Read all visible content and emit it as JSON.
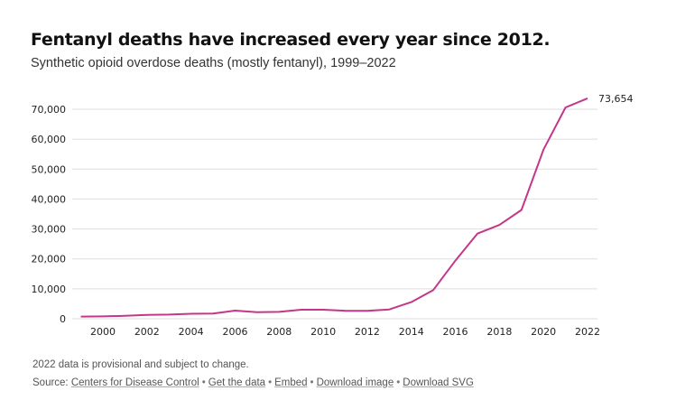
{
  "chart_data": {
    "type": "line",
    "title": "Fentanyl deaths have increased every year since 2012.",
    "subtitle": "Synthetic opioid overdose deaths (mostly fentanyl), 1999–2022",
    "xlabel": "",
    "ylabel": "",
    "x": [
      1999,
      2000,
      2001,
      2002,
      2003,
      2004,
      2005,
      2006,
      2007,
      2008,
      2009,
      2010,
      2011,
      2012,
      2013,
      2014,
      2015,
      2016,
      2017,
      2018,
      2019,
      2020,
      2021,
      2022
    ],
    "series": [
      {
        "name": "Synthetic opioid overdose deaths",
        "color": "#c2378a",
        "values": [
          730,
          782,
          957,
          1295,
          1400,
          1664,
          1742,
          2707,
          2213,
          2306,
          3007,
          3007,
          2666,
          2628,
          3105,
          5544,
          9580,
          19413,
          28466,
          31335,
          36359,
          56516,
          70601,
          73654
        ]
      }
    ],
    "end_label": "73,654",
    "xlim": [
      1999,
      2022
    ],
    "ylim": [
      0,
      70000
    ],
    "yticks": [
      0,
      10000,
      20000,
      30000,
      40000,
      50000,
      60000,
      70000
    ],
    "ytick_labels": [
      "0",
      "10,000",
      "20,000",
      "30,000",
      "40,000",
      "50,000",
      "60,000",
      "70,000"
    ],
    "xticks": [
      2000,
      2002,
      2004,
      2006,
      2008,
      2010,
      2012,
      2014,
      2016,
      2018,
      2020,
      2022
    ],
    "xtick_labels": [
      "2000",
      "2002",
      "2004",
      "2006",
      "2008",
      "2010",
      "2012",
      "2014",
      "2016",
      "2018",
      "2020",
      "2022"
    ],
    "grid": true,
    "legend": "none"
  },
  "footer": {
    "note": "2022 data is provisional and subject to change.",
    "source_prefix": "Source: ",
    "links": [
      "Centers for Disease Control",
      "Get the data",
      "Embed",
      "Download image",
      "Download SVG"
    ],
    "separator": "•"
  },
  "colors": {
    "line": "#c2378a",
    "grid": "#dddddd"
  }
}
